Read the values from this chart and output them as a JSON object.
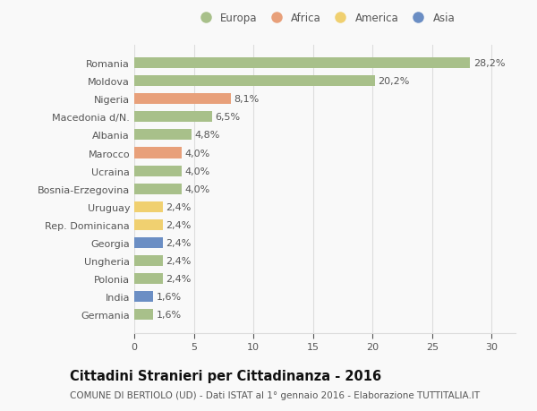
{
  "categories": [
    "Germania",
    "India",
    "Polonia",
    "Ungheria",
    "Georgia",
    "Rep. Dominicana",
    "Uruguay",
    "Bosnia-Erzegovina",
    "Ucraina",
    "Marocco",
    "Albania",
    "Macedonia d/N.",
    "Nigeria",
    "Moldova",
    "Romania"
  ],
  "values": [
    1.6,
    1.6,
    2.4,
    2.4,
    2.4,
    2.4,
    2.4,
    4.0,
    4.0,
    4.0,
    4.8,
    6.5,
    8.1,
    20.2,
    28.2
  ],
  "continents": [
    "Europa",
    "Asia",
    "Europa",
    "Europa",
    "Asia",
    "America",
    "America",
    "Europa",
    "Europa",
    "Africa",
    "Europa",
    "Europa",
    "Africa",
    "Europa",
    "Europa"
  ],
  "colors": {
    "Europa": "#a8c08a",
    "Africa": "#e8a07a",
    "America": "#f0d070",
    "Asia": "#6b8ec4"
  },
  "legend_labels": [
    "Europa",
    "Africa",
    "America",
    "Asia"
  ],
  "legend_colors": [
    "#a8c08a",
    "#e8a07a",
    "#f0d070",
    "#6b8ec4"
  ],
  "title": "Cittadini Stranieri per Cittadinanza - 2016",
  "subtitle": "COMUNE DI BERTIOLO (UD) - Dati ISTAT al 1° gennaio 2016 - Elaborazione TUTTITALIA.IT",
  "xlim": [
    0,
    32
  ],
  "xticks": [
    0,
    5,
    10,
    15,
    20,
    25,
    30
  ],
  "bar_height": 0.6,
  "background_color": "#f9f9f9",
  "grid_color": "#dddddd",
  "text_color": "#555555",
  "title_color": "#111111",
  "subtitle_color": "#555555",
  "title_fontsize": 10.5,
  "subtitle_fontsize": 7.5,
  "label_fontsize": 8,
  "value_fontsize": 8,
  "legend_fontsize": 8.5,
  "tick_fontsize": 8
}
